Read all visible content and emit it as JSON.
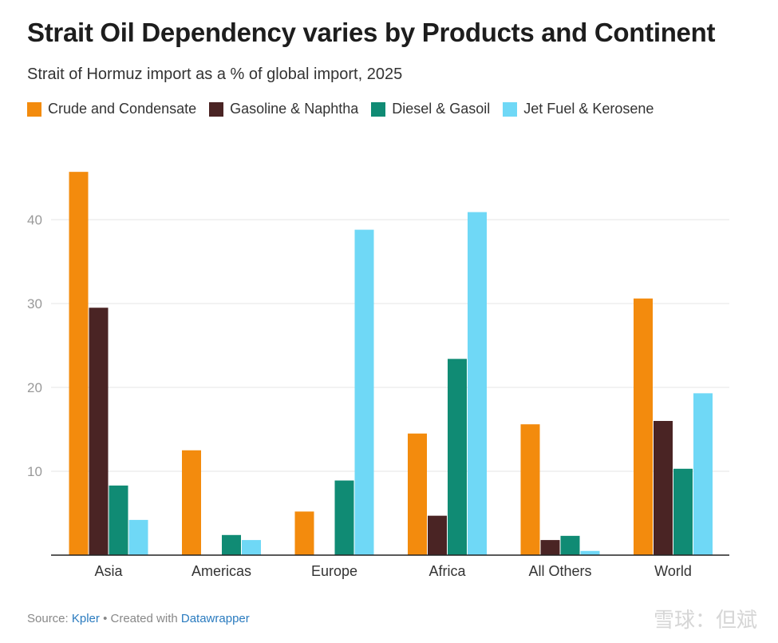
{
  "title": "Strait Oil Dependency varies by Products and Continent",
  "subtitle": "Strait of Hormuz import as a % of global import, 2025",
  "footer": {
    "source_label": "Source: ",
    "source_link": "Kpler",
    "separator": " • Created with ",
    "tool_link": "Datawrapper"
  },
  "watermark": "雪球：但斌",
  "colors": {
    "crude": "#f38b0d",
    "gasoline": "#4a2424",
    "diesel": "#108b74",
    "jet": "#6fd8f6",
    "grid": "#e6e6e6",
    "axis": "#222222",
    "tick_text": "#999999"
  },
  "chart_data": {
    "type": "bar",
    "title": "Strait Oil Dependency varies by Products and Continent",
    "subtitle": "Strait of Hormuz import as a % of global import, 2025",
    "categories": [
      "Asia",
      "Americas",
      "Europe",
      "Africa",
      "All Others",
      "World"
    ],
    "series": [
      {
        "name": "Crude and Condensate",
        "color": "#f38b0d",
        "values": [
          45.7,
          12.5,
          5.2,
          14.5,
          15.6,
          30.6
        ]
      },
      {
        "name": "Gasoline & Naphtha",
        "color": "#4a2424",
        "values": [
          29.5,
          0,
          0,
          4.7,
          1.8,
          16.0
        ]
      },
      {
        "name": "Diesel & Gasoil",
        "color": "#108b74",
        "values": [
          8.3,
          2.4,
          8.9,
          23.4,
          2.3,
          10.3
        ]
      },
      {
        "name": "Jet Fuel & Kerosene",
        "color": "#6fd8f6",
        "values": [
          4.2,
          1.8,
          38.8,
          40.9,
          0.5,
          19.3
        ]
      }
    ],
    "yticks": [
      10,
      20,
      30,
      40
    ],
    "ylim": [
      0,
      47
    ],
    "grid": true,
    "legend": "top-left"
  }
}
